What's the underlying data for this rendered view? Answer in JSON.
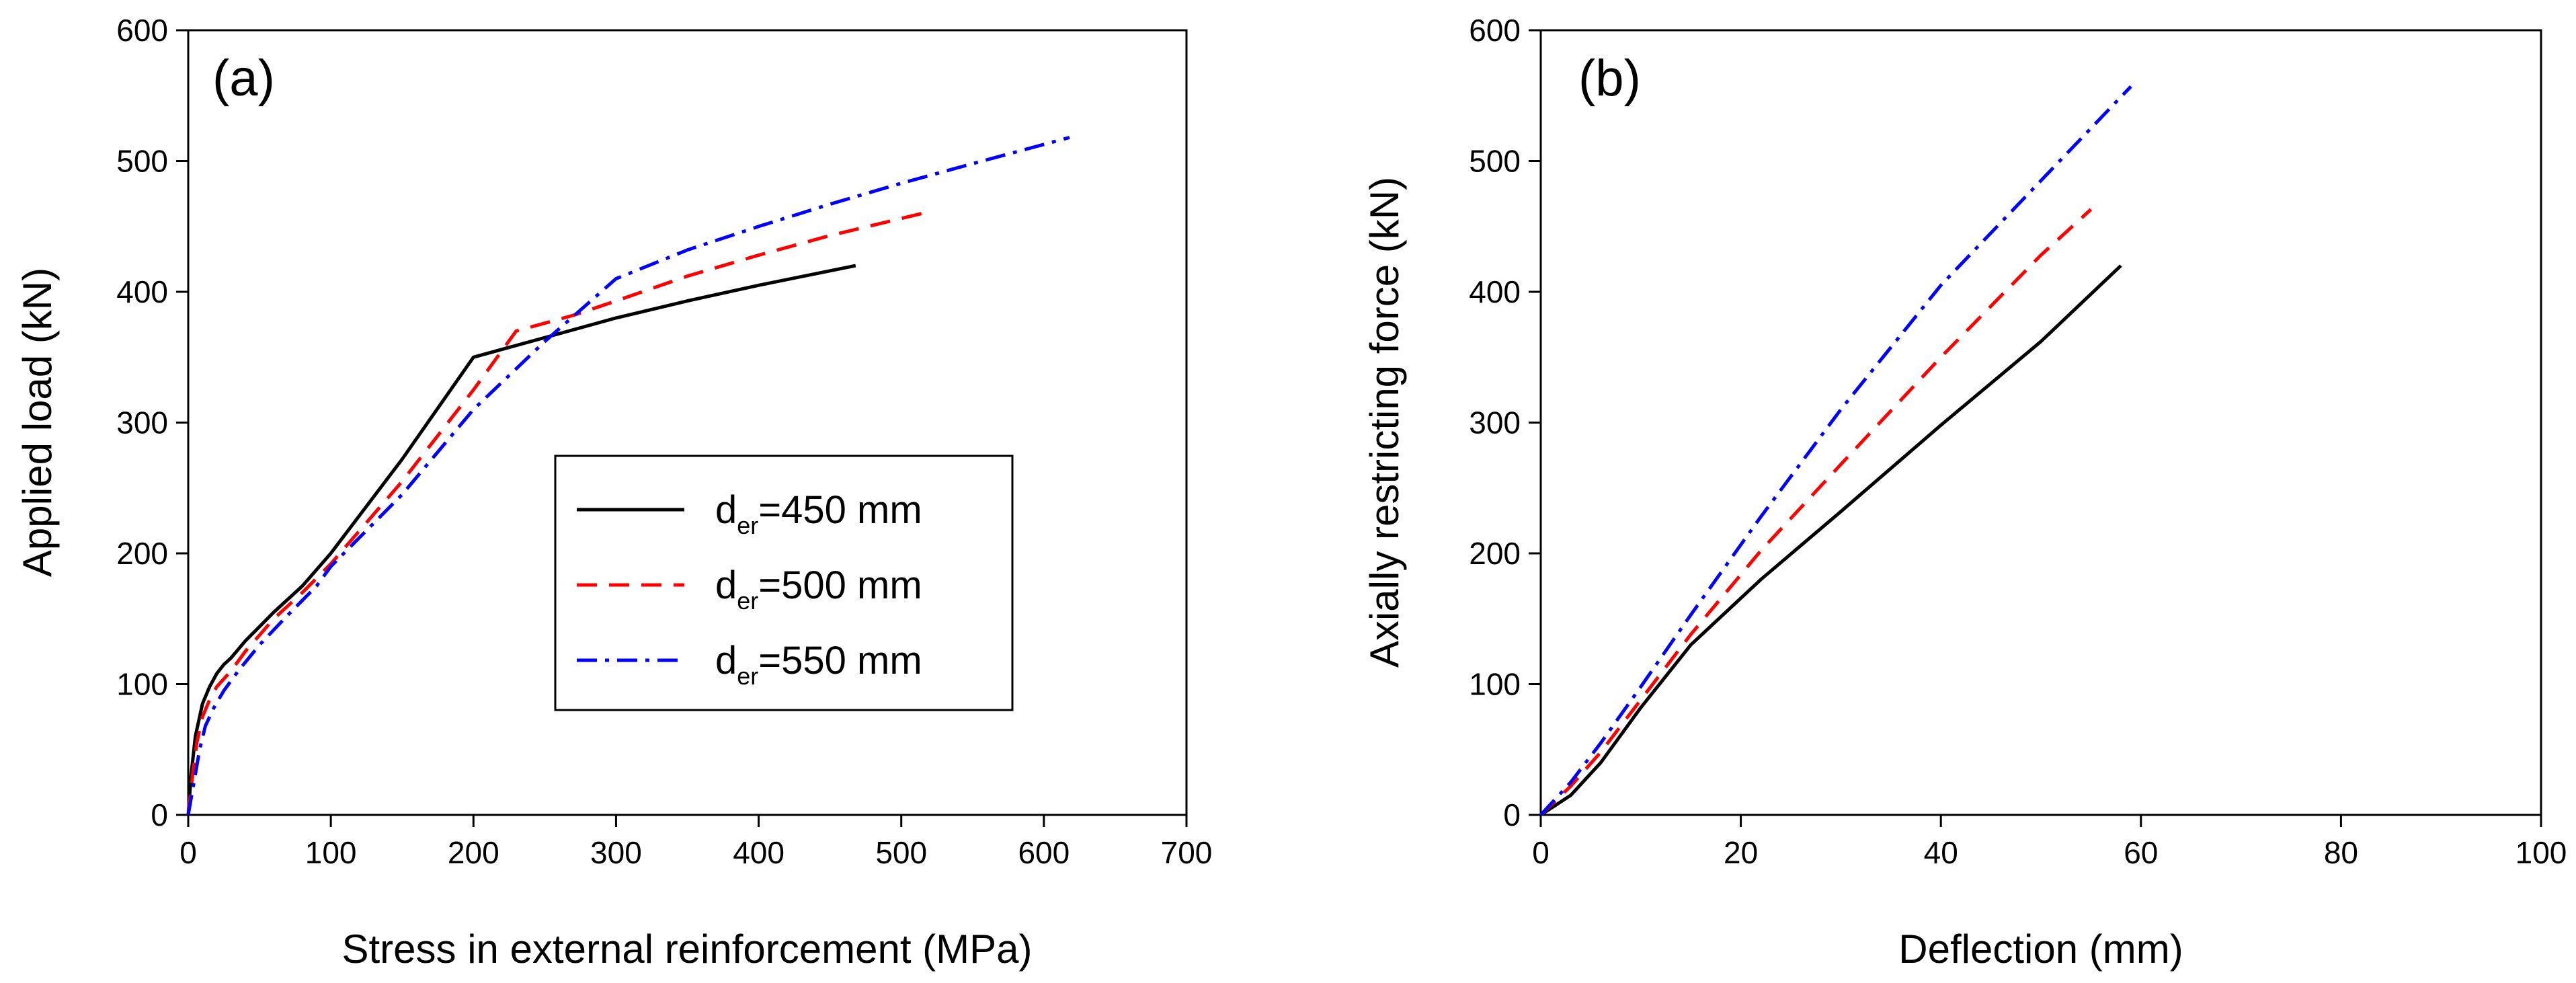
{
  "chart_data": [
    {
      "type": "line",
      "panel_label": "(a)",
      "title": "",
      "xlabel": "Stress in external reinforcement (MPa)",
      "ylabel": "Applied load (kN)",
      "xlim": [
        0,
        700
      ],
      "ylim": [
        0,
        600
      ],
      "xticks": [
        0,
        100,
        200,
        300,
        400,
        500,
        600,
        700
      ],
      "yticks": [
        0,
        100,
        200,
        300,
        400,
        500,
        600
      ],
      "grid": false,
      "legend_position": "center-right",
      "series": [
        {
          "name_main": "d",
          "name_sub": "er",
          "name_rest": "=450 mm",
          "color": "#000000",
          "dash": "solid",
          "x": [
            0,
            2,
            5,
            10,
            15,
            20,
            25,
            30,
            40,
            60,
            80,
            100,
            150,
            200,
            250,
            300,
            350,
            400,
            468
          ],
          "y": [
            0,
            30,
            60,
            85,
            98,
            108,
            115,
            120,
            133,
            155,
            175,
            200,
            272,
            350,
            365,
            380,
            393,
            405,
            420
          ]
        },
        {
          "name_main": "d",
          "name_sub": "er",
          "name_rest": "=500 mm",
          "color": "#ff0000",
          "dash": "dash",
          "x": [
            0,
            3,
            6,
            10,
            15,
            20,
            30,
            40,
            60,
            80,
            100,
            150,
            200,
            230,
            270,
            300,
            350,
            400,
            450,
            515
          ],
          "y": [
            0,
            30,
            55,
            75,
            88,
            98,
            110,
            125,
            150,
            170,
            192,
            255,
            325,
            370,
            382,
            393,
            412,
            428,
            443,
            460
          ]
        },
        {
          "name_main": "d",
          "name_sub": "er",
          "name_rest": "=550 mm",
          "color": "#0000ff",
          "dash": "dashdot",
          "x": [
            0,
            4,
            8,
            12,
            18,
            25,
            35,
            50,
            70,
            90,
            100,
            150,
            200,
            250,
            300,
            350,
            400,
            450,
            500,
            550,
            618
          ],
          "y": [
            0,
            25,
            50,
            68,
            82,
            95,
            110,
            130,
            153,
            175,
            190,
            245,
            310,
            362,
            410,
            432,
            450,
            467,
            483,
            498,
            518
          ]
        }
      ]
    },
    {
      "type": "line",
      "panel_label": "(b)",
      "title": "",
      "xlabel": "Deflection (mm)",
      "ylabel": "Axially restricting force (kN)",
      "xlim": [
        0,
        100
      ],
      "ylim": [
        0,
        600
      ],
      "xticks": [
        0,
        20,
        40,
        60,
        80,
        100
      ],
      "yticks": [
        0,
        100,
        200,
        300,
        400,
        500,
        600
      ],
      "grid": false,
      "series": [
        {
          "name": "der=450 mm",
          "color": "#000000",
          "dash": "solid",
          "x": [
            0,
            3,
            6,
            10,
            15,
            22,
            30,
            40,
            50,
            58
          ],
          "y": [
            0,
            15,
            40,
            82,
            130,
            180,
            232,
            298,
            362,
            420
          ]
        },
        {
          "name": "der=500 mm",
          "color": "#ff0000",
          "dash": "dash",
          "x": [
            0,
            3,
            6,
            10,
            15,
            22,
            30,
            40,
            50,
            55
          ],
          "y": [
            0,
            22,
            48,
            88,
            138,
            202,
            268,
            350,
            428,
            463
          ]
        },
        {
          "name": "der=550 mm",
          "color": "#0000ff",
          "dash": "dashdot",
          "x": [
            0,
            3,
            6,
            10,
            15,
            22,
            30,
            40,
            50,
            59
          ],
          "y": [
            0,
            25,
            55,
            98,
            153,
            228,
            310,
            405,
            485,
            557
          ]
        }
      ]
    }
  ]
}
